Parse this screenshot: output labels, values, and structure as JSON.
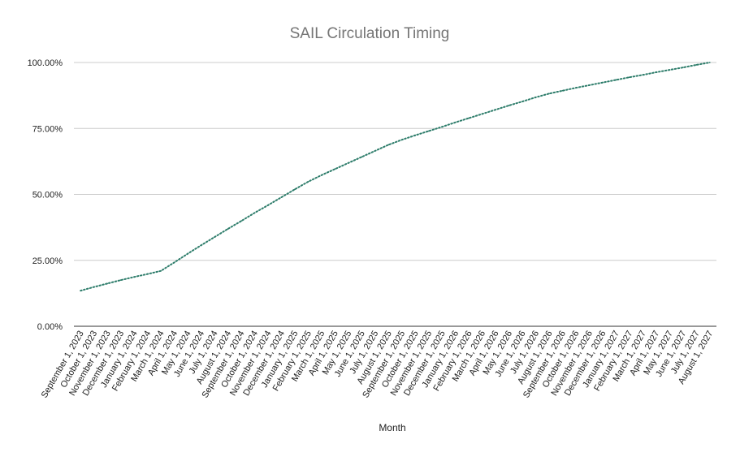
{
  "chart_data": {
    "type": "line",
    "title": "SAIL Circulation Timing",
    "xlabel": "Month",
    "ylabel": "",
    "ylim": [
      0,
      100
    ],
    "y_tick_labels": [
      "0.00%",
      "25.00%",
      "50.00%",
      "75.00%",
      "100.00%"
    ],
    "y_ticks": [
      0,
      25,
      50,
      75,
      100
    ],
    "grid": true,
    "legend": "none",
    "line_color": "#2e7d6b",
    "line_style": "dotted",
    "categories": [
      "September 1, 2023",
      "October 1, 2023",
      "November 1, 2023",
      "December 1, 2023",
      "January 1, 2024",
      "February 1, 2024",
      "March 1, 2024",
      "April 1, 2024",
      "May 1, 2024",
      "June 1, 2024",
      "July 1, 2024",
      "August 1, 2024",
      "September 1, 2024",
      "October 1, 2024",
      "November 1, 2024",
      "December 1, 2024",
      "January 1, 2025",
      "February 1, 2025",
      "March 1, 2025",
      "April 1, 2025",
      "May 1, 2025",
      "June 1, 2025",
      "July 1, 2025",
      "August 1, 2025",
      "September 1, 2025",
      "October 1, 2025",
      "November 1, 2025",
      "December 1, 2025",
      "January 1, 2026",
      "February 1, 2026",
      "March 1, 2026",
      "April 1, 2026",
      "May 1, 2026",
      "June 1, 2026",
      "July 1, 2026",
      "August 1, 2026",
      "September 1, 2026",
      "October 1, 2026",
      "November 1, 2026",
      "December 1, 2026",
      "January 1, 2027",
      "February 1, 2027",
      "March 1, 2027",
      "April 1, 2027",
      "May 1, 2027",
      "June 1, 2027",
      "July 1, 2027",
      "August 1, 2027"
    ],
    "series": [
      {
        "values": [
          13.5,
          14.9,
          16.2,
          17.5,
          18.7,
          19.8,
          21.0,
          24.2,
          27.5,
          30.7,
          33.8,
          36.9,
          39.9,
          43.0,
          45.9,
          48.9,
          51.9,
          54.8,
          57.3,
          59.6,
          61.9,
          64.2,
          66.5,
          68.8,
          70.7,
          72.4,
          74.0,
          75.6,
          77.3,
          78.9,
          80.5,
          82.1,
          83.7,
          85.2,
          86.8,
          88.2,
          89.3,
          90.4,
          91.4,
          92.4,
          93.4,
          94.4,
          95.3,
          96.3,
          97.2,
          98.1,
          99.1,
          100.0
        ]
      }
    ]
  }
}
